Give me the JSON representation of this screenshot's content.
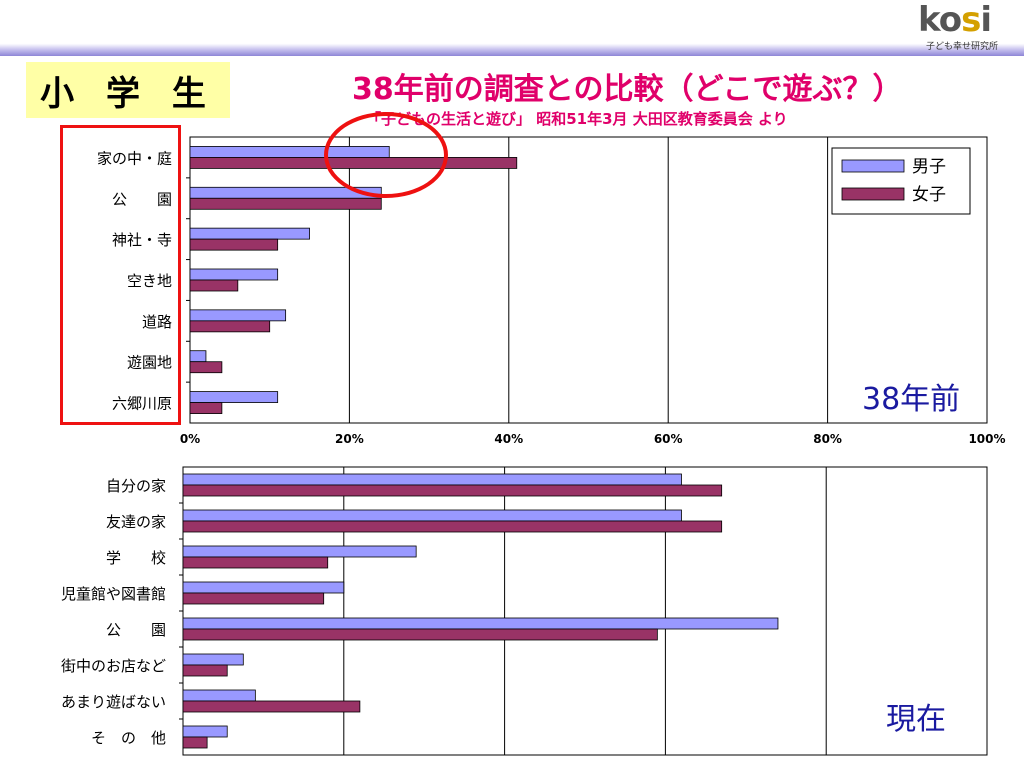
{
  "header": {
    "logo_text_a": "ko",
    "logo_text_b": "s",
    "logo_text_c": "i",
    "logo_sub": "子ども幸せ研究所",
    "grade": "小 学 生",
    "title": "38年前の調査との比較（どこで遊ぶ？）",
    "subtitle": "「子どもの生活と遊び」 昭和51年3月  大田区教育委員会 より"
  },
  "labels": {
    "past": "38年前",
    "present": "現在"
  },
  "colors": {
    "boys": "#9999ff",
    "girls": "#993366",
    "title": "#e0006a",
    "highlight": "#ee1111"
  },
  "chart_data": [
    {
      "type": "bar",
      "orientation": "horizontal",
      "categories": [
        "家の中・庭",
        "公　　園",
        "神社・寺",
        "空き地",
        "道路",
        "遊園地",
        "六郷川原"
      ],
      "series": [
        {
          "name": "男子",
          "values": [
            25,
            24,
            15,
            11,
            12,
            2,
            11
          ]
        },
        {
          "name": "女子",
          "values": [
            41,
            24,
            11,
            6,
            10,
            4,
            4
          ]
        }
      ],
      "xlim": [
        0,
        100
      ],
      "xticks": [
        "0%",
        "20%",
        "40%",
        "60%",
        "80%",
        "100%"
      ],
      "legend": "top-right",
      "grid": true
    },
    {
      "type": "bar",
      "orientation": "horizontal",
      "categories": [
        "自分の家",
        "友達の家",
        "学　　校",
        "児童館や図書館",
        "公　　園",
        "街中のお店など",
        "あまり遊ばない",
        "そ　の　他"
      ],
      "series": [
        {
          "name": "男子",
          "values": [
            62,
            62,
            29,
            20,
            74,
            7.5,
            9,
            5.5
          ]
        },
        {
          "name": "女子",
          "values": [
            67,
            67,
            18,
            17.5,
            59,
            5.5,
            22,
            3
          ]
        }
      ],
      "xlim": [
        0,
        100
      ],
      "grid": true
    }
  ]
}
